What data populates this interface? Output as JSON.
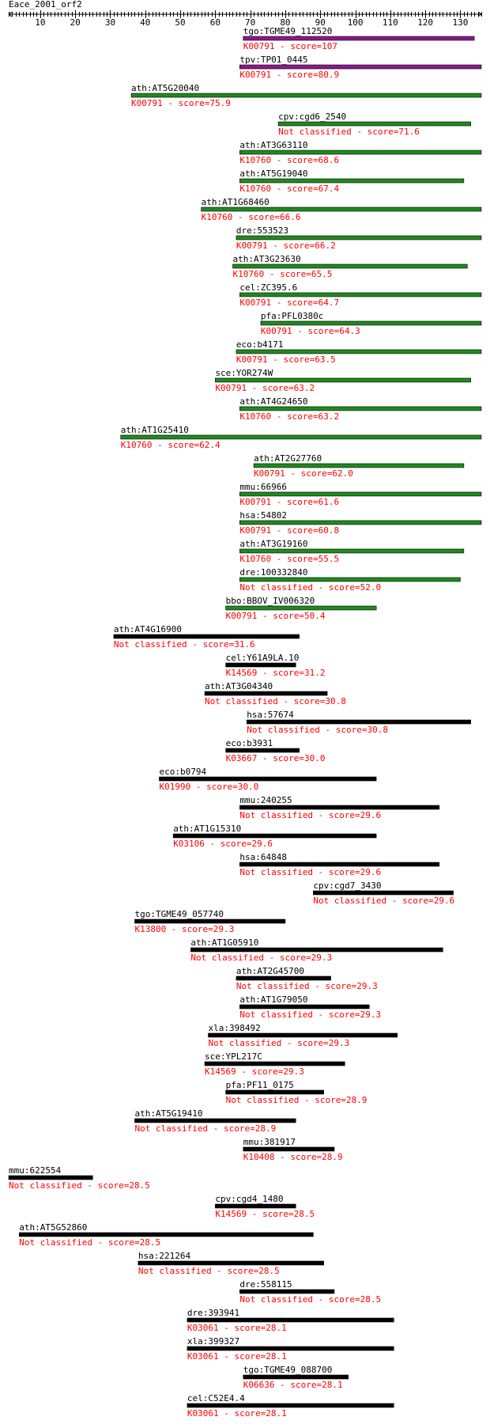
{
  "title": "Eace_2001_orf2",
  "axis": {
    "min": 1,
    "max": 136,
    "ticks": [
      10,
      20,
      30,
      40,
      50,
      60,
      70,
      80,
      90,
      100,
      110,
      120,
      130
    ]
  },
  "colors": {
    "purple": "#8b1a8b",
    "green": "#1e8a1e",
    "black": "#000000",
    "label": "#000000",
    "score": "#ff0000"
  },
  "hits": [
    {
      "name": "tgo:TGME49_112520",
      "ko": "K00791",
      "score": "107",
      "start": 68,
      "end": 134,
      "color": "purple"
    },
    {
      "name": "tpv:TP01_0445",
      "ko": "K00791",
      "score": "80.9",
      "start": 67,
      "end": 136,
      "color": "purple"
    },
    {
      "name": "ath:AT5G20040",
      "ko": "K00791",
      "score": "75.9",
      "start": 36,
      "end": 136,
      "color": "green"
    },
    {
      "name": "cpv:cgd6_2540",
      "ko": "Not classified",
      "score": "71.6",
      "start": 78,
      "end": 133,
      "color": "green"
    },
    {
      "name": "ath:AT3G63110",
      "ko": "K10760",
      "score": "68.6",
      "start": 67,
      "end": 136,
      "color": "green"
    },
    {
      "name": "ath:AT5G19040",
      "ko": "K10760",
      "score": "67.4",
      "start": 67,
      "end": 131,
      "color": "green"
    },
    {
      "name": "ath:AT1G68460",
      "ko": "K10760",
      "score": "66.6",
      "start": 56,
      "end": 136,
      "color": "green"
    },
    {
      "name": "dre:553523",
      "ko": "K00791",
      "score": "66.2",
      "start": 66,
      "end": 136,
      "color": "green"
    },
    {
      "name": "ath:AT3G23630",
      "ko": "K10760",
      "score": "65.5",
      "start": 65,
      "end": 132,
      "color": "green"
    },
    {
      "name": "cel:ZC395.6",
      "ko": "K00791",
      "score": "64.7",
      "start": 67,
      "end": 136,
      "color": "green"
    },
    {
      "name": "pfa:PFL0380c",
      "ko": "K00791",
      "score": "64.3",
      "start": 73,
      "end": 136,
      "color": "green"
    },
    {
      "name": "eco:b4171",
      "ko": "K00791",
      "score": "63.5",
      "start": 66,
      "end": 136,
      "color": "green"
    },
    {
      "name": "sce:YOR274W",
      "ko": "K00791",
      "score": "63.2",
      "start": 60,
      "end": 133,
      "color": "green"
    },
    {
      "name": "ath:AT4G24650",
      "ko": "K10760",
      "score": "63.2",
      "start": 67,
      "end": 136,
      "color": "green"
    },
    {
      "name": "ath:AT1G25410",
      "ko": "K10760",
      "score": "62.4",
      "start": 33,
      "end": 136,
      "color": "green"
    },
    {
      "name": "ath:AT2G27760",
      "ko": "K00791",
      "score": "62.0",
      "start": 71,
      "end": 131,
      "color": "green"
    },
    {
      "name": "mmu:66966",
      "ko": "K00791",
      "score": "61.6",
      "start": 67,
      "end": 136,
      "color": "green"
    },
    {
      "name": "hsa:54802",
      "ko": "K00791",
      "score": "60.8",
      "start": 67,
      "end": 136,
      "color": "green"
    },
    {
      "name": "ath:AT3G19160",
      "ko": "K10760",
      "score": "55.5",
      "start": 67,
      "end": 131,
      "color": "green"
    },
    {
      "name": "dre:100332840",
      "ko": "Not classified",
      "score": "52.0",
      "start": 67,
      "end": 130,
      "color": "green"
    },
    {
      "name": "bbo:BBOV_IV006320",
      "ko": "K00791",
      "score": "50.4",
      "start": 63,
      "end": 106,
      "color": "green"
    },
    {
      "name": "ath:AT4G16900",
      "ko": "Not classified",
      "score": "31.6",
      "start": 31,
      "end": 84,
      "color": "black"
    },
    {
      "name": "cel:Y61A9LA.10",
      "ko": "K14569",
      "score": "31.2",
      "start": 63,
      "end": 83,
      "color": "black"
    },
    {
      "name": "ath:AT3G04340",
      "ko": "Not classified",
      "score": "30.8",
      "start": 57,
      "end": 92,
      "color": "black"
    },
    {
      "name": "hsa:57674",
      "ko": "Not classified",
      "score": "30.8",
      "start": 69,
      "end": 133,
      "color": "black"
    },
    {
      "name": "eco:b3931",
      "ko": "K03667",
      "score": "30.0",
      "start": 63,
      "end": 84,
      "color": "black"
    },
    {
      "name": "eco:b0794",
      "ko": "K01990",
      "score": "30.0",
      "start": 44,
      "end": 106,
      "color": "black"
    },
    {
      "name": "mmu:240255",
      "ko": "Not classified",
      "score": "29.6",
      "start": 67,
      "end": 124,
      "color": "black"
    },
    {
      "name": "ath:AT1G15310",
      "ko": "K03106",
      "score": "29.6",
      "start": 48,
      "end": 106,
      "color": "black"
    },
    {
      "name": "hsa:64848",
      "ko": "Not classified",
      "score": "29.6",
      "start": 67,
      "end": 124,
      "color": "black"
    },
    {
      "name": "cpv:cgd7_3430",
      "ko": "Not classified",
      "score": "29.6",
      "start": 88,
      "end": 128,
      "color": "black"
    },
    {
      "name": "tgo:TGME49_057740",
      "ko": "K13800",
      "score": "29.3",
      "start": 37,
      "end": 80,
      "color": "black"
    },
    {
      "name": "ath:AT1G05910",
      "ko": "Not classified",
      "score": "29.3",
      "start": 53,
      "end": 125,
      "color": "black"
    },
    {
      "name": "ath:AT2G45700",
      "ko": "Not classified",
      "score": "29.3",
      "start": 66,
      "end": 93,
      "color": "black"
    },
    {
      "name": "ath:AT1G79050",
      "ko": "Not classified",
      "score": "29.3",
      "start": 67,
      "end": 104,
      "color": "black"
    },
    {
      "name": "xla:398492",
      "ko": "Not classified",
      "score": "29.3",
      "start": 58,
      "end": 112,
      "color": "black"
    },
    {
      "name": "sce:YPL217C",
      "ko": "K14569",
      "score": "29.3",
      "start": 57,
      "end": 97,
      "color": "black"
    },
    {
      "name": "pfa:PF11_0175",
      "ko": "Not classified",
      "score": "28.9",
      "start": 63,
      "end": 91,
      "color": "black"
    },
    {
      "name": "ath:AT5G19410",
      "ko": "Not classified",
      "score": "28.9",
      "start": 37,
      "end": 83,
      "color": "black"
    },
    {
      "name": "mmu:381917",
      "ko": "K10408",
      "score": "28.9",
      "start": 68,
      "end": 94,
      "color": "black"
    },
    {
      "name": "mmu:622554",
      "ko": "Not classified",
      "score": "28.5",
      "start": 1,
      "end": 25,
      "color": "black"
    },
    {
      "name": "cpv:cgd4_1480",
      "ko": "K14569",
      "score": "28.5",
      "start": 60,
      "end": 83,
      "color": "black"
    },
    {
      "name": "ath:AT5G52860",
      "ko": "Not classified",
      "score": "28.5",
      "start": 4,
      "end": 88,
      "color": "black"
    },
    {
      "name": "hsa:221264",
      "ko": "Not classified",
      "score": "28.5",
      "start": 38,
      "end": 91,
      "color": "black"
    },
    {
      "name": "dre:558115",
      "ko": "Not classified",
      "score": "28.5",
      "start": 67,
      "end": 94,
      "color": "black"
    },
    {
      "name": "dre:393941",
      "ko": "K03061",
      "score": "28.1",
      "start": 52,
      "end": 111,
      "color": "black"
    },
    {
      "name": "xla:399327",
      "ko": "K03061",
      "score": "28.1",
      "start": 52,
      "end": 111,
      "color": "black"
    },
    {
      "name": "tgo:TGME49_088700",
      "ko": "K06636",
      "score": "28.1",
      "start": 68,
      "end": 98,
      "color": "black"
    },
    {
      "name": "cel:C52E4.4",
      "ko": "K03061",
      "score": "28.1",
      "start": 52,
      "end": 111,
      "color": "black"
    }
  ]
}
